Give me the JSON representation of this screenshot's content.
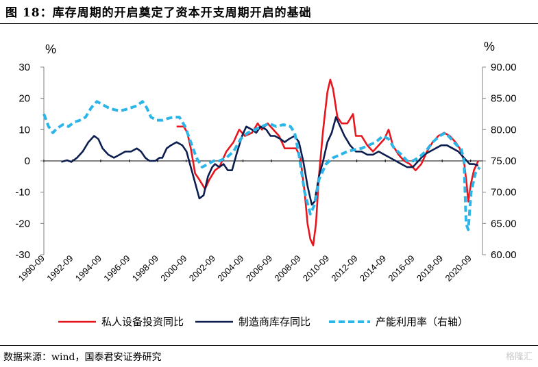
{
  "figure": {
    "title": "图 18：库存周期的开启奠定了资本开支周期开启的基础",
    "source": "数据来源：wind，国泰君安证券研究",
    "watermark": "格隆汇"
  },
  "colors": {
    "private_investment": "#e8151c",
    "inventory": "#0c1d4f",
    "capacity": "#2bb5e8"
  },
  "chart_data": {
    "type": "line",
    "title": "库存周期的开启奠定了资本开支周期开启的基础",
    "left_axis": {
      "unit": "%",
      "range": [
        -30,
        30
      ],
      "ticks": [
        "30",
        "20",
        "10",
        "0",
        "-10",
        "-20",
        "-30"
      ]
    },
    "right_axis": {
      "unit": "%",
      "range": [
        60,
        90
      ],
      "ticks": [
        "90.00",
        "85.00",
        "80.00",
        "75.00",
        "70.00",
        "65.00",
        "60.00"
      ]
    },
    "x_range": [
      1990.67,
      2021.5
    ],
    "x_ticks": [
      "1990-09",
      "1992-09",
      "1994-09",
      "1996-09",
      "1998-09",
      "2000-09",
      "2002-09",
      "2004-09",
      "2006-09",
      "2008-09",
      "2010-09",
      "2012-09",
      "2014-09",
      "2016-09",
      "2018-09",
      "2020-09"
    ],
    "series": [
      {
        "name": "私人设备投资同比",
        "axis": "left",
        "style": "solid",
        "points": [
          [
            2000.0,
            11
          ],
          [
            2000.5,
            11
          ],
          [
            2000.75,
            9
          ],
          [
            2001.0,
            4
          ],
          [
            2001.3,
            -4
          ],
          [
            2001.6,
            -6
          ],
          [
            2002.0,
            -9
          ],
          [
            2002.3,
            -6
          ],
          [
            2002.7,
            -3
          ],
          [
            2003.0,
            -2
          ],
          [
            2003.5,
            3
          ],
          [
            2004.0,
            6
          ],
          [
            2004.4,
            10
          ],
          [
            2004.8,
            8
          ],
          [
            2005.3,
            9
          ],
          [
            2005.7,
            12
          ],
          [
            2006.0,
            10
          ],
          [
            2006.4,
            12
          ],
          [
            2006.8,
            10
          ],
          [
            2007.2,
            8
          ],
          [
            2007.6,
            4
          ],
          [
            2008.0,
            4
          ],
          [
            2008.4,
            4
          ],
          [
            2008.7,
            1
          ],
          [
            2009.0,
            -10
          ],
          [
            2009.2,
            -20
          ],
          [
            2009.4,
            -25
          ],
          [
            2009.6,
            -27
          ],
          [
            2009.8,
            -20
          ],
          [
            2010.0,
            -5
          ],
          [
            2010.3,
            10
          ],
          [
            2010.6,
            22
          ],
          [
            2010.8,
            26
          ],
          [
            2011.0,
            23
          ],
          [
            2011.3,
            14
          ],
          [
            2011.6,
            12
          ],
          [
            2012.0,
            12
          ],
          [
            2012.4,
            15
          ],
          [
            2012.6,
            8
          ],
          [
            2013.0,
            8
          ],
          [
            2013.4,
            5
          ],
          [
            2013.8,
            3
          ],
          [
            2014.2,
            5
          ],
          [
            2014.6,
            7
          ],
          [
            2014.9,
            10
          ],
          [
            2015.2,
            5
          ],
          [
            2015.6,
            2
          ],
          [
            2016.0,
            0
          ],
          [
            2016.4,
            -1
          ],
          [
            2016.8,
            -3
          ],
          [
            2017.2,
            -1
          ],
          [
            2017.6,
            3
          ],
          [
            2018.0,
            6
          ],
          [
            2018.4,
            8
          ],
          [
            2018.8,
            9
          ],
          [
            2019.2,
            8
          ],
          [
            2019.6,
            6
          ],
          [
            2019.9,
            4
          ],
          [
            2020.2,
            0
          ],
          [
            2020.4,
            -8
          ],
          [
            2020.5,
            -13
          ],
          [
            2020.7,
            -7
          ],
          [
            2020.9,
            -3
          ],
          [
            2021.2,
            0
          ]
        ]
      },
      {
        "name": "制造商库存同比",
        "axis": "left",
        "style": "solid",
        "points": [
          [
            1991.9,
            -0.3
          ],
          [
            1992.3,
            0.2
          ],
          [
            1992.6,
            -0.3
          ],
          [
            1993.0,
            1
          ],
          [
            1993.4,
            3
          ],
          [
            1993.8,
            6
          ],
          [
            1994.2,
            8
          ],
          [
            1994.5,
            7
          ],
          [
            1994.8,
            4
          ],
          [
            1995.2,
            2
          ],
          [
            1995.6,
            1
          ],
          [
            1996.0,
            2
          ],
          [
            1996.4,
            3
          ],
          [
            1996.8,
            3
          ],
          [
            1997.2,
            4
          ],
          [
            1997.5,
            3
          ],
          [
            1997.8,
            1
          ],
          [
            1998.1,
            0
          ],
          [
            1998.5,
            0
          ],
          [
            1998.8,
            1
          ],
          [
            1999.0,
            1
          ],
          [
            1999.3,
            4
          ],
          [
            1999.6,
            5
          ],
          [
            2000.0,
            6
          ],
          [
            2000.4,
            5
          ],
          [
            2000.7,
            3
          ],
          [
            2001.0,
            -2
          ],
          [
            2001.3,
            -7
          ],
          [
            2001.6,
            -12
          ],
          [
            2001.9,
            -11
          ],
          [
            2002.2,
            -5
          ],
          [
            2002.5,
            -2
          ],
          [
            2002.7,
            -1
          ],
          [
            2003.0,
            -2
          ],
          [
            2003.3,
            -1
          ],
          [
            2003.6,
            -3
          ],
          [
            2003.9,
            -3
          ],
          [
            2004.2,
            2
          ],
          [
            2004.6,
            8
          ],
          [
            2004.9,
            11
          ],
          [
            2005.3,
            10
          ],
          [
            2005.6,
            9
          ],
          [
            2005.9,
            11
          ],
          [
            2006.3,
            10
          ],
          [
            2006.6,
            8
          ],
          [
            2006.9,
            8
          ],
          [
            2007.3,
            7
          ],
          [
            2007.6,
            6
          ],
          [
            2007.9,
            7
          ],
          [
            2008.3,
            8
          ],
          [
            2008.6,
            6
          ],
          [
            2008.9,
            0
          ],
          [
            2009.2,
            -8
          ],
          [
            2009.5,
            -14
          ],
          [
            2009.7,
            -13
          ],
          [
            2010.0,
            -5
          ],
          [
            2010.3,
            0
          ],
          [
            2010.6,
            6
          ],
          [
            2010.9,
            9
          ],
          [
            2011.2,
            14
          ],
          [
            2011.5,
            11
          ],
          [
            2011.8,
            8
          ],
          [
            2012.2,
            5
          ],
          [
            2012.6,
            3
          ],
          [
            2013.0,
            3
          ],
          [
            2013.4,
            2
          ],
          [
            2013.8,
            2
          ],
          [
            2014.2,
            3
          ],
          [
            2014.6,
            2
          ],
          [
            2015.0,
            1
          ],
          [
            2015.4,
            0
          ],
          [
            2015.8,
            -1
          ],
          [
            2016.2,
            -2
          ],
          [
            2016.6,
            -2
          ],
          [
            2017.0,
            0
          ],
          [
            2017.4,
            2
          ],
          [
            2017.8,
            3
          ],
          [
            2018.2,
            4
          ],
          [
            2018.6,
            5
          ],
          [
            2019.0,
            5
          ],
          [
            2019.4,
            4
          ],
          [
            2019.8,
            3
          ],
          [
            2020.2,
            1
          ],
          [
            2020.6,
            -1
          ],
          [
            2020.9,
            -1
          ],
          [
            2021.2,
            -1.5
          ]
        ]
      },
      {
        "name": "产能利用率（右轴）",
        "axis": "right",
        "style": "dashed",
        "points": [
          [
            1990.67,
            82.5
          ],
          [
            1991.0,
            80.5
          ],
          [
            1991.3,
            79.5
          ],
          [
            1991.6,
            80.2
          ],
          [
            1992.0,
            80.8
          ],
          [
            1992.4,
            80.5
          ],
          [
            1992.8,
            81.2
          ],
          [
            1993.2,
            81.5
          ],
          [
            1993.6,
            82.0
          ],
          [
            1994.0,
            83.5
          ],
          [
            1994.4,
            84.5
          ],
          [
            1994.8,
            84.0
          ],
          [
            1995.2,
            83.5
          ],
          [
            1995.6,
            83.2
          ],
          [
            1996.0,
            83.0
          ],
          [
            1996.4,
            83.2
          ],
          [
            1996.8,
            83.5
          ],
          [
            1997.2,
            83.8
          ],
          [
            1997.6,
            84.5
          ],
          [
            1997.9,
            83.5
          ],
          [
            1998.2,
            82.0
          ],
          [
            1998.6,
            81.5
          ],
          [
            1999.0,
            81.5
          ],
          [
            1999.4,
            81.8
          ],
          [
            1999.8,
            82.0
          ],
          [
            2000.2,
            82.0
          ],
          [
            2000.6,
            80.5
          ],
          [
            2001.0,
            78.0
          ],
          [
            2001.4,
            75.5
          ],
          [
            2001.8,
            74.0
          ],
          [
            2002.2,
            74.5
          ],
          [
            2002.6,
            75.0
          ],
          [
            2003.0,
            75.0
          ],
          [
            2003.5,
            75.5
          ],
          [
            2004.0,
            76.5
          ],
          [
            2004.5,
            78.5
          ],
          [
            2005.0,
            79.5
          ],
          [
            2005.5,
            80.0
          ],
          [
            2006.0,
            80.5
          ],
          [
            2006.5,
            81.0
          ],
          [
            2007.0,
            80.5
          ],
          [
            2007.5,
            80.8
          ],
          [
            2008.0,
            80.5
          ],
          [
            2008.3,
            79.5
          ],
          [
            2008.6,
            76.0
          ],
          [
            2009.0,
            70.0
          ],
          [
            2009.4,
            66.5
          ],
          [
            2009.7,
            68.0
          ],
          [
            2010.0,
            72.0
          ],
          [
            2010.5,
            74.5
          ],
          [
            2011.0,
            75.5
          ],
          [
            2011.5,
            76.0
          ],
          [
            2012.0,
            76.5
          ],
          [
            2012.5,
            76.8
          ],
          [
            2013.0,
            77.0
          ],
          [
            2013.5,
            77.5
          ],
          [
            2014.0,
            78.0
          ],
          [
            2014.5,
            79.0
          ],
          [
            2014.9,
            78.5
          ],
          [
            2015.3,
            77.0
          ],
          [
            2015.8,
            76.0
          ],
          [
            2016.2,
            75.0
          ],
          [
            2016.6,
            75.0
          ],
          [
            2017.0,
            75.5
          ],
          [
            2017.5,
            76.5
          ],
          [
            2018.0,
            78.0
          ],
          [
            2018.5,
            79.0
          ],
          [
            2018.9,
            79.5
          ],
          [
            2019.3,
            78.5
          ],
          [
            2019.7,
            77.5
          ],
          [
            2020.0,
            77.0
          ],
          [
            2020.2,
            75.0
          ],
          [
            2020.35,
            65.0
          ],
          [
            2020.5,
            64.0
          ],
          [
            2020.7,
            70.0
          ],
          [
            2021.0,
            73.0
          ],
          [
            2021.3,
            74.0
          ]
        ]
      }
    ],
    "legend": {
      "placement": "bottom"
    }
  }
}
